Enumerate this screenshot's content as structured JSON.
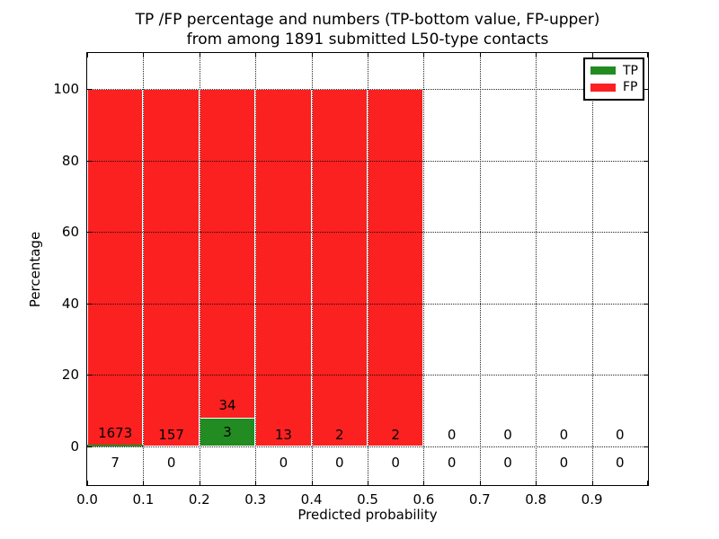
{
  "figure": {
    "title_line1": "TP /FP percentage and numbers (TP-bottom value, FP-upper)",
    "title_line2": "from among 1891 submitted L50-type contacts",
    "xlabel": "Predicted probability",
    "ylabel": "Percentage"
  },
  "legend": {
    "position": "upper right",
    "items": [
      {
        "label": "TP",
        "color": "#228b22"
      },
      {
        "label": "FP",
        "color": "#fb2121"
      }
    ]
  },
  "chart_data": {
    "type": "bar",
    "stacked": true,
    "title": "TP /FP percentage and numbers (TP-bottom value, FP-upper) from among 1891 submitted L50-type contacts",
    "xlabel": "Predicted probability",
    "ylabel": "Percentage",
    "total_contacts": 1891,
    "xlim": [
      0.0,
      1.0
    ],
    "ylim": [
      -11,
      110
    ],
    "grid": "dotted",
    "bin_width": 0.1,
    "bin_starts": [
      0.0,
      0.1,
      0.2,
      0.3,
      0.4,
      0.5,
      0.6,
      0.7,
      0.8,
      0.9
    ],
    "x_tick_labels": [
      "0.0",
      "0.1",
      "0.2",
      "0.3",
      "0.4",
      "0.5",
      "0.6",
      "0.7",
      "0.8",
      "0.9"
    ],
    "y_tick_labels": [
      "0",
      "20",
      "40",
      "60",
      "80",
      "100"
    ],
    "y_tick_values": [
      0,
      20,
      40,
      60,
      80,
      100
    ],
    "series": [
      {
        "name": "TP",
        "color": "#228b22",
        "counts": [
          7,
          0,
          3,
          0,
          0,
          0,
          0,
          0,
          0,
          0
        ],
        "percentages": [
          0.42,
          0.0,
          8.11,
          0.0,
          0.0,
          0.0,
          0.0,
          0.0,
          0.0,
          0.0
        ]
      },
      {
        "name": "FP",
        "color": "#fb2121",
        "counts": [
          1673,
          157,
          34,
          13,
          2,
          2,
          0,
          0,
          0,
          0
        ],
        "percentages": [
          99.58,
          100.0,
          91.89,
          100.0,
          100.0,
          100.0,
          0.0,
          0.0,
          0.0,
          0.0
        ]
      }
    ]
  }
}
